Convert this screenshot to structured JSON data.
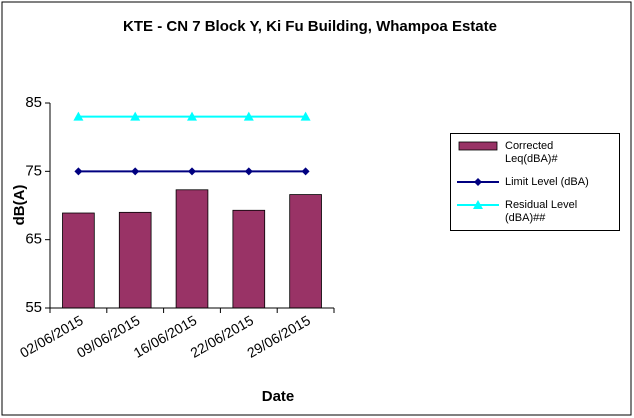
{
  "chart_data": {
    "type": "bar",
    "title": "KTE - CN 7 Block Y, Ki Fu Building, Whampoa Estate",
    "x_label": "Date",
    "y_label": "dB(A)",
    "categories": [
      "02/06/2015",
      "09/06/2015",
      "16/06/2015",
      "22/06/2015",
      "29/06/2015"
    ],
    "series": [
      {
        "name": "Corrected Leq(dBA)#",
        "type": "bar",
        "color": "#993366",
        "values": [
          68.9,
          69.0,
          72.3,
          69.3,
          71.6
        ]
      },
      {
        "name": "Limit Level (dBA)",
        "type": "line",
        "marker": "diamond",
        "color": "#000080",
        "values": [
          75,
          75,
          75,
          75,
          75
        ]
      },
      {
        "name": "Residual Level (dBA)##",
        "type": "line",
        "marker": "triangle",
        "color": "#00FFFF",
        "values": [
          83,
          83,
          83,
          83,
          83
        ]
      }
    ],
    "ylim": [
      55,
      85
    ],
    "yticks": [
      55,
      65,
      75,
      85
    ],
    "grid": false,
    "legend": "right"
  }
}
